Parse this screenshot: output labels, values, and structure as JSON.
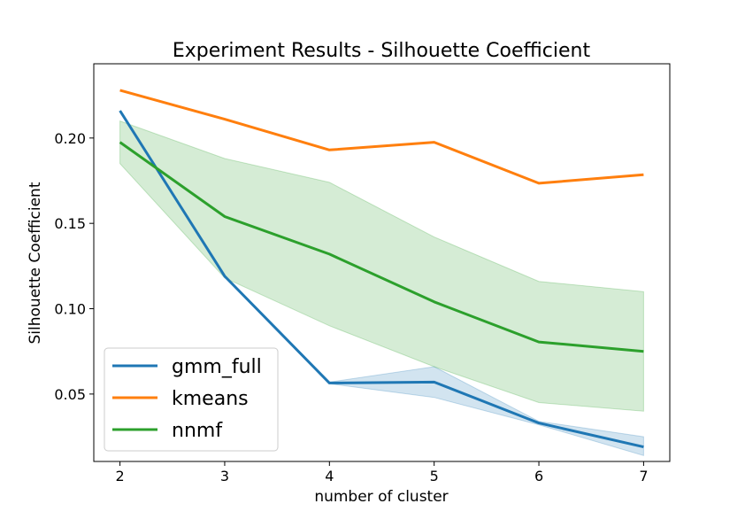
{
  "chart_data": {
    "type": "line",
    "title": "Experiment Results - Silhouette Coefficient",
    "xlabel": "number of cluster",
    "ylabel": "Silhouette Coefficient",
    "x": [
      2,
      3,
      4,
      5,
      6,
      7
    ],
    "xlim": [
      1.75,
      7.25
    ],
    "ylim": [
      0.0105,
      0.2435
    ],
    "xticks": [
      2,
      3,
      4,
      5,
      6,
      7
    ],
    "yticks": [
      0.05,
      0.1,
      0.15,
      0.2
    ],
    "ytick_labels": [
      "0.05",
      "0.10",
      "0.15",
      "0.20"
    ],
    "grid": false,
    "legend_position": "lower-left",
    "series": [
      {
        "name": "gmm_full",
        "color": "#1f77b4",
        "values": [
          0.216,
          0.119,
          0.0565,
          0.057,
          0.033,
          0.019
        ],
        "band_lower": [
          0.216,
          0.119,
          0.056,
          0.048,
          0.032,
          0.014
        ],
        "band_upper": [
          0.216,
          0.119,
          0.057,
          0.066,
          0.034,
          0.025
        ]
      },
      {
        "name": "kmeans",
        "color": "#ff7f0e",
        "values": [
          0.228,
          0.211,
          0.193,
          0.1975,
          0.1735,
          0.1785
        ]
      },
      {
        "name": "nnmf",
        "color": "#2ca02c",
        "values": [
          0.1975,
          0.154,
          0.132,
          0.104,
          0.0805,
          0.075
        ],
        "band_lower": [
          0.185,
          0.118,
          0.09,
          0.066,
          0.045,
          0.04
        ],
        "band_upper": [
          0.21,
          0.188,
          0.174,
          0.142,
          0.116,
          0.11
        ]
      }
    ]
  }
}
